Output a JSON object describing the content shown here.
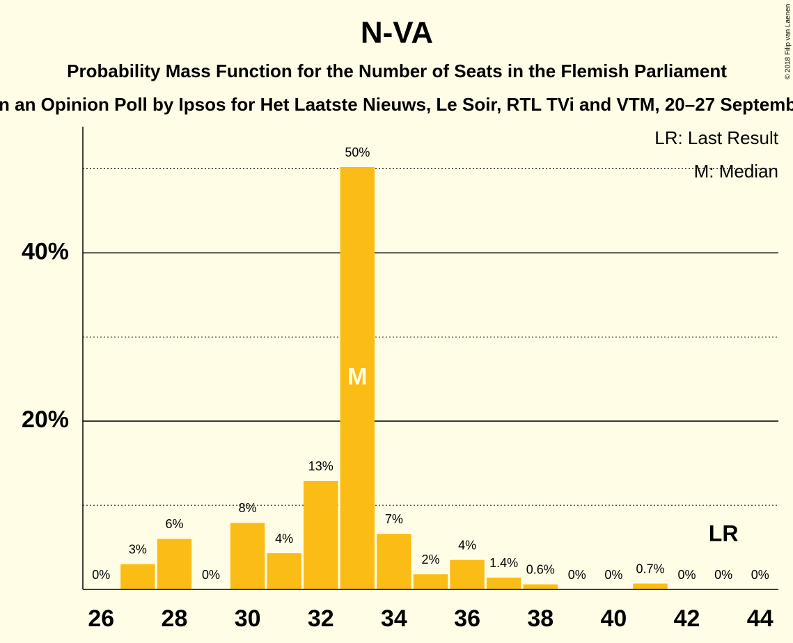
{
  "chart_data": {
    "type": "bar",
    "title": "N-VA",
    "subtitle": "Probability Mass Function for the Number of Seats in the Flemish Parliament",
    "subtitle2": "n an Opinion Poll by Ipsos for Het Laatste Nieuws, Le Soir, RTL TVi and VTM, 20–27 Septemb",
    "copyright": "© 2018 Filip van Laenen",
    "legend": [
      "LR: Last Result",
      "M: Median"
    ],
    "x": [
      26,
      27,
      28,
      29,
      30,
      31,
      32,
      33,
      34,
      35,
      36,
      37,
      38,
      39,
      40,
      41,
      42,
      43,
      44
    ],
    "values": [
      0,
      3,
      6,
      0,
      7.9,
      4.3,
      12.9,
      50.2,
      6.6,
      1.8,
      3.5,
      1.4,
      0.6,
      0,
      0,
      0.7,
      0,
      0,
      0
    ],
    "value_labels": [
      "0%",
      "3%",
      "6%",
      "0%",
      "8%",
      "4%",
      "13%",
      "50%",
      "7%",
      "2%",
      "4%",
      "1.4%",
      "0.6%",
      "0%",
      "0%",
      "0.7%",
      "0%",
      "0%",
      "0%"
    ],
    "color": "#fbbd15",
    "xlim": [
      25.5,
      44.5
    ],
    "xticks": [
      26,
      28,
      30,
      32,
      34,
      36,
      38,
      40,
      42,
      44
    ],
    "ylim": [
      0,
      55
    ],
    "yticks": [
      {
        "value": 20,
        "label": "20%"
      },
      {
        "value": 40,
        "label": "40%"
      }
    ],
    "minor_grid": [
      10,
      30,
      50
    ],
    "median": 33,
    "median_label": "M",
    "last_result": 43,
    "last_result_label": "LR"
  }
}
